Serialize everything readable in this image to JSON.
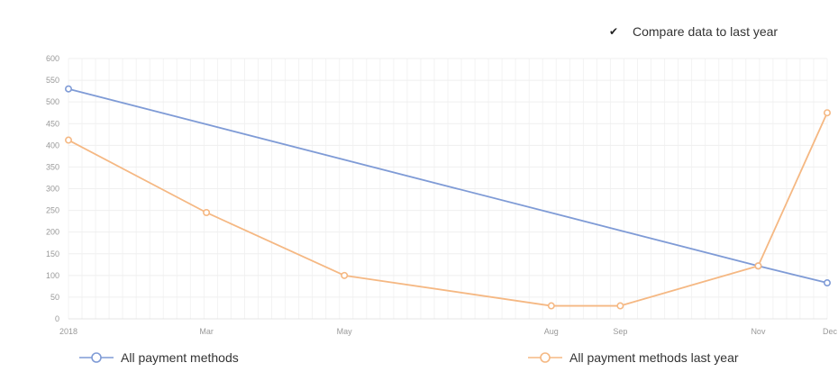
{
  "compare": {
    "label": "Compare data to last year",
    "checked": true,
    "check_icon": "✔"
  },
  "chart_data": {
    "type": "line",
    "title": "",
    "xlabel": "",
    "ylabel": "",
    "ylim": [
      0,
      600
    ],
    "yticks": [
      0,
      50,
      100,
      150,
      200,
      250,
      300,
      350,
      400,
      450,
      500,
      550,
      600
    ],
    "x_range": [
      0,
      11
    ],
    "x_ticks": [
      {
        "label": "2018",
        "x": 0
      },
      {
        "label": "Mar",
        "x": 2
      },
      {
        "label": "May",
        "x": 4
      },
      {
        "label": "Aug",
        "x": 7
      },
      {
        "label": "Sep",
        "x": 8
      },
      {
        "label": "Nov",
        "x": 10
      },
      {
        "label": "Dec",
        "x": 11
      }
    ],
    "grid": true,
    "legend_position": "bottom",
    "series": [
      {
        "name": "All payment methods",
        "color": "#7f9bd6",
        "points": [
          {
            "x": 0,
            "y": 530
          },
          {
            "x": 10,
            "y": 122
          },
          {
            "x": 11,
            "y": 83
          }
        ]
      },
      {
        "name": "All payment methods last year",
        "color": "#f5b883",
        "points": [
          {
            "x": 0,
            "y": 412
          },
          {
            "x": 2,
            "y": 245
          },
          {
            "x": 4,
            "y": 100
          },
          {
            "x": 7,
            "y": 30
          },
          {
            "x": 8,
            "y": 30
          },
          {
            "x": 10,
            "y": 122
          },
          {
            "x": 11,
            "y": 475
          }
        ]
      }
    ]
  }
}
